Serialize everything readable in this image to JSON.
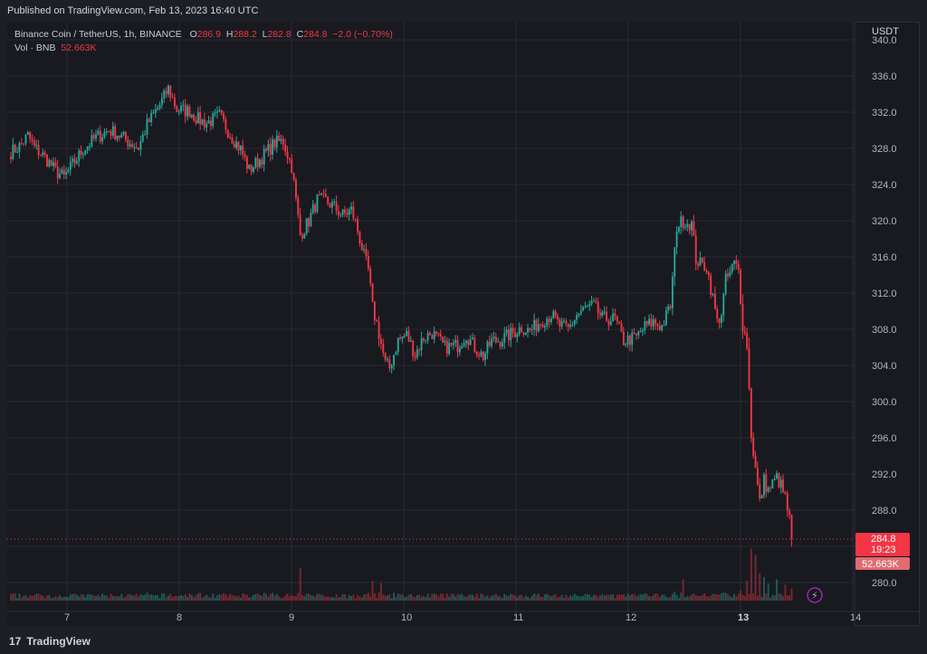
{
  "header": {
    "published": "Published on TradingView.com, Feb 13, 2023 16:40 UTC"
  },
  "legend": {
    "symbol": "Binance Coin / TetherUS, 1h, BINANCE",
    "o_label": "O",
    "o": "286.9",
    "h_label": "H",
    "h": "288.2",
    "l_label": "L",
    "l": "282.8",
    "c_label": "C",
    "c": "284.8",
    "change": "−2.0 (−0.70%)",
    "vol_label": "Vol · BNB",
    "vol": "52.663K"
  },
  "footer": {
    "brand": "TradingView",
    "logo_glyph": "17"
  },
  "colors": {
    "up": "#26a69a",
    "down": "#f23645",
    "bg": "#181a20",
    "grid": "#262a33",
    "text": "#b2b5be",
    "price_badge": "#f23645"
  },
  "chart_data": {
    "type": "candlestick",
    "currency": "USDT",
    "y_ticks": [
      "280.0",
      "284.0",
      "288.0",
      "292.0",
      "296.0",
      "300.0",
      "304.0",
      "308.0",
      "312.0",
      "316.0",
      "320.0",
      "324.0",
      "328.0",
      "332.0",
      "336.0",
      "340.0"
    ],
    "x_ticks": [
      "7",
      "8",
      "9",
      "10",
      "11",
      "12",
      "13",
      "14"
    ],
    "ylim": [
      278.0,
      341.0
    ],
    "last_price": "284.8",
    "countdown": "19:23",
    "last_volume": "52.663K",
    "anchors": [
      [
        0,
        327.6
      ],
      [
        4,
        328.2
      ],
      [
        8,
        329.4
      ],
      [
        11,
        328.1
      ],
      [
        16,
        327.0
      ],
      [
        21,
        325.5
      ],
      [
        25,
        324.8
      ],
      [
        29,
        326.2
      ],
      [
        34,
        327.9
      ],
      [
        40,
        329.2
      ],
      [
        46,
        330.0
      ],
      [
        50,
        329.6
      ],
      [
        56,
        328.6
      ],
      [
        60,
        328.1
      ],
      [
        64,
        330.6
      ],
      [
        70,
        332.8
      ],
      [
        74,
        334.6
      ],
      [
        78,
        332.3
      ],
      [
        84,
        332.1
      ],
      [
        88,
        331.2
      ],
      [
        92,
        330.8
      ],
      [
        98,
        331.6
      ],
      [
        104,
        329.2
      ],
      [
        108,
        327.9
      ],
      [
        112,
        325.6
      ],
      [
        118,
        327.0
      ],
      [
        124,
        328.6
      ],
      [
        128,
        328.8
      ],
      [
        132,
        326.0
      ],
      [
        136,
        318.4
      ],
      [
        140,
        320.0
      ],
      [
        144,
        322.3
      ],
      [
        148,
        322.2
      ],
      [
        152,
        321.5
      ],
      [
        156,
        320.6
      ],
      [
        160,
        321.2
      ],
      [
        162,
        319.8
      ],
      [
        164,
        318.0
      ],
      [
        166,
        316.1
      ],
      [
        168,
        314.5
      ],
      [
        170,
        310.4
      ],
      [
        172,
        308.6
      ],
      [
        174,
        306.4
      ],
      [
        176,
        304.2
      ],
      [
        178,
        303.7
      ],
      [
        182,
        306.8
      ],
      [
        186,
        307.4
      ],
      [
        190,
        305.2
      ],
      [
        194,
        307.1
      ],
      [
        198,
        307.6
      ],
      [
        204,
        306.0
      ],
      [
        210,
        306.2
      ],
      [
        214,
        307.4
      ],
      [
        218,
        306.0
      ],
      [
        222,
        305.0
      ],
      [
        226,
        306.7
      ],
      [
        230,
        306.8
      ],
      [
        236,
        307.6
      ],
      [
        240,
        308.2
      ],
      [
        244,
        307.8
      ],
      [
        248,
        308.7
      ],
      [
        254,
        309.6
      ],
      [
        258,
        308.4
      ],
      [
        262,
        308.0
      ],
      [
        266,
        309.6
      ],
      [
        270,
        310.3
      ],
      [
        274,
        310.6
      ],
      [
        278,
        309.2
      ],
      [
        284,
        309.1
      ],
      [
        288,
        306.7
      ],
      [
        294,
        307.1
      ],
      [
        298,
        308.3
      ],
      [
        302,
        308.8
      ],
      [
        306,
        308.3
      ],
      [
        310,
        310.6
      ],
      [
        313,
        319.4
      ],
      [
        316,
        320.0
      ],
      [
        318,
        319.8
      ],
      [
        320,
        319.6
      ],
      [
        322,
        315.8
      ],
      [
        324,
        315.2
      ],
      [
        327,
        314.9
      ],
      [
        330,
        311.4
      ],
      [
        332,
        308.8
      ],
      [
        334,
        309.8
      ],
      [
        336,
        313.4
      ],
      [
        338,
        314.2
      ],
      [
        340,
        315.3
      ],
      [
        342,
        314.4
      ],
      [
        344,
        308.5
      ],
      [
        346,
        306.3
      ],
      [
        348,
        296.4
      ],
      [
        350,
        292.5
      ],
      [
        352,
        288.8
      ],
      [
        354,
        291.3
      ],
      [
        356,
        290.2
      ],
      [
        360,
        291.6
      ],
      [
        362,
        290.7
      ],
      [
        364,
        289.3
      ],
      [
        366,
        286.9
      ],
      [
        367,
        284.8
      ]
    ],
    "volume_spikes": [
      [
        136,
        86
      ],
      [
        170,
        52
      ],
      [
        174,
        46
      ],
      [
        316,
        56
      ],
      [
        346,
        52
      ],
      [
        348,
        137
      ],
      [
        350,
        120
      ],
      [
        352,
        72
      ],
      [
        354,
        62
      ],
      [
        356,
        45
      ],
      [
        360,
        56
      ],
      [
        364,
        42
      ],
      [
        367,
        32
      ]
    ],
    "volume_unit": "percent of panel"
  }
}
